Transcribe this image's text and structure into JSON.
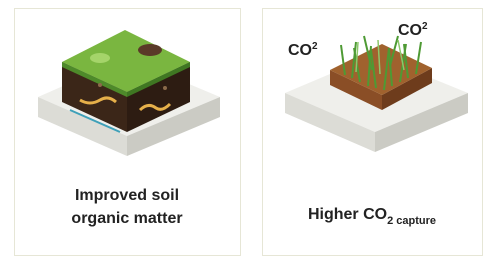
{
  "cards": [
    {
      "caption": {
        "lines": [
          "Improved soil",
          "organic matter"
        ]
      }
    },
    {
      "caption": {
        "main": "Higher CO",
        "sub": "2 capture"
      },
      "labels": [
        {
          "text": "CO",
          "sup": "2"
        },
        {
          "text": "CO",
          "sup": "2"
        }
      ]
    }
  ]
}
